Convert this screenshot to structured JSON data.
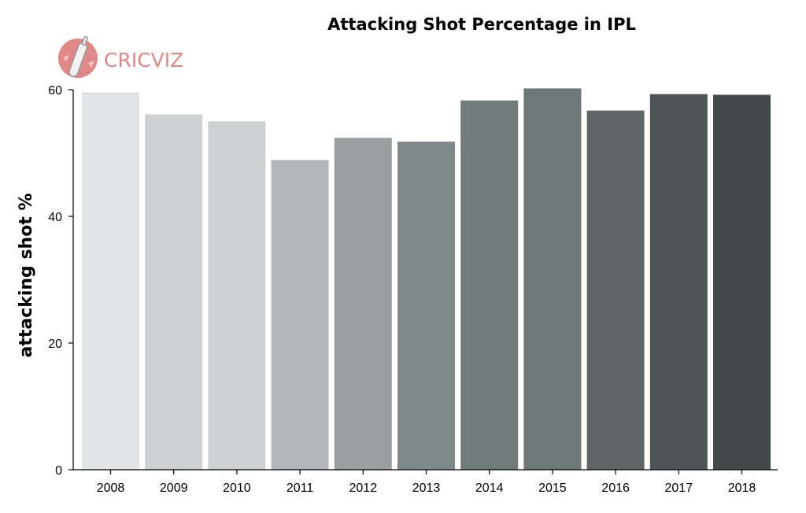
{
  "logo": {
    "text": "CRICVIZ",
    "color": "#e08888"
  },
  "chart_data": {
    "type": "bar",
    "title": "Attacking Shot Percentage in IPL",
    "xlabel": "",
    "ylabel": "attacking shot %",
    "categories": [
      "2008",
      "2009",
      "2010",
      "2011",
      "2012",
      "2013",
      "2014",
      "2015",
      "2016",
      "2017",
      "2018"
    ],
    "values": [
      59.6,
      56.1,
      55.0,
      48.9,
      52.4,
      51.8,
      58.3,
      60.2,
      56.7,
      59.3,
      59.2
    ],
    "colors": [
      "#e1e4e4",
      "#cdd1d1",
      "#cdd1d1",
      "#b2b8b9",
      "#99a0a0",
      "#7e8a8a",
      "#707b7a",
      "#6e7877",
      "#5f6666",
      "#4e5556",
      "#424a49"
    ],
    "ylim": [
      0,
      60
    ],
    "yticks": [
      0,
      20,
      40,
      60
    ],
    "grid": false,
    "legend": "none"
  }
}
